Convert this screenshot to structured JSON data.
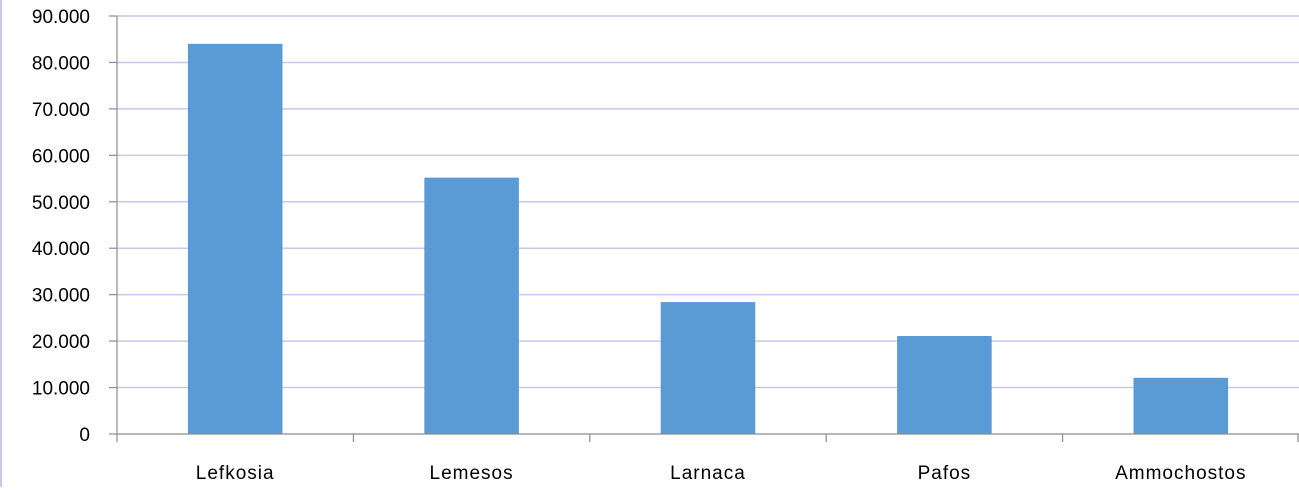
{
  "chart_data": {
    "type": "bar",
    "categories": [
      "Lefkosia",
      "Lemesos",
      "Larnaca",
      "Pafos",
      "Ammochostos"
    ],
    "values": [
      84000,
      55200,
      28400,
      21100,
      12100
    ],
    "ylim": [
      0,
      90000
    ],
    "ytick_values": [
      0,
      10000,
      20000,
      30000,
      40000,
      50000,
      60000,
      70000,
      80000,
      90000
    ],
    "ytick_labels": [
      "0",
      "10.000",
      "20.000",
      "30.000",
      "40.000",
      "50.000",
      "60.000",
      "70.000",
      "80.000",
      "90.000"
    ],
    "grid": true,
    "legend": "none",
    "colors": {
      "bar": "#5b9bd5",
      "grid": "#c9c6f0",
      "axis": "#8c8c8c"
    }
  }
}
